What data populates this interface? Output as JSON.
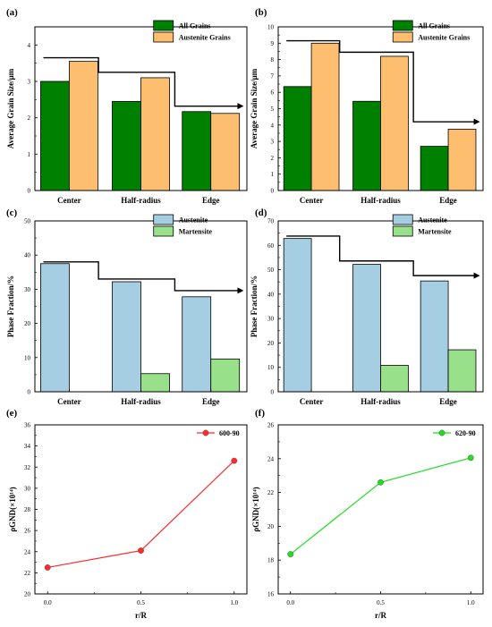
{
  "colors": {
    "all_grains": "#008000",
    "austenite_grains": "#FDBF6F",
    "austenite": "#A6CEE3",
    "martensite": "#99E08A",
    "line_600": "#FF2A2A",
    "line_620": "#22DD22"
  },
  "chart_data": [
    {
      "panel": "(a)",
      "type": "bar",
      "categories": [
        "Center",
        "Half-radius",
        "Edge"
      ],
      "series": [
        {
          "name": "All Grains",
          "values": [
            3.0,
            2.45,
            2.17
          ]
        },
        {
          "name": "Austenite Grains",
          "values": [
            3.55,
            3.1,
            2.12
          ]
        }
      ],
      "xlabel": "",
      "ylabel": "Average Grain Size/μm",
      "ylim": [
        0,
        4.5
      ],
      "yticks": [
        "0",
        "1",
        "2",
        "3",
        "4"
      ],
      "trend_arrow": [
        3.65,
        3.25,
        2.32
      ],
      "legend": "top-right"
    },
    {
      "panel": "(b)",
      "type": "bar",
      "categories": [
        "Center",
        "Half-radius",
        "Edge"
      ],
      "series": [
        {
          "name": "All Grains",
          "values": [
            6.35,
            5.45,
            2.7
          ]
        },
        {
          "name": "Austenite Grains",
          "values": [
            9.0,
            8.2,
            3.75
          ]
        }
      ],
      "xlabel": "",
      "ylabel": "Average Grain Size/μm",
      "ylim": [
        0,
        10
      ],
      "yticks": [
        "0",
        "1",
        "2",
        "3",
        "4",
        "5",
        "6",
        "7",
        "8",
        "9",
        "10"
      ],
      "trend_arrow": [
        9.15,
        8.45,
        4.2
      ],
      "legend": "top-right"
    },
    {
      "panel": "(c)",
      "type": "bar",
      "categories": [
        "Center",
        "Half-radius",
        "Edge"
      ],
      "series": [
        {
          "name": "Austenite",
          "values": [
            37.5,
            32.2,
            27.8
          ]
        },
        {
          "name": "Martensite",
          "values": [
            0,
            5.3,
            9.6
          ]
        }
      ],
      "xlabel": "",
      "ylabel": "Phase Fraction/%",
      "ylim": [
        0,
        50
      ],
      "yticks": [
        "0",
        "10",
        "20",
        "30",
        "40",
        "50"
      ],
      "trend_arrow": [
        38,
        33,
        29.6
      ],
      "legend": "top-right"
    },
    {
      "panel": "(d)",
      "type": "bar",
      "categories": [
        "Center",
        "Half-radius",
        "Edge"
      ],
      "series": [
        {
          "name": "Austenite",
          "values": [
            62.8,
            52.2,
            45.4
          ]
        },
        {
          "name": "Martensite",
          "values": [
            0,
            10.8,
            17.2
          ]
        }
      ],
      "xlabel": "",
      "ylabel": "Phase Fraction/%",
      "ylim": [
        0,
        70
      ],
      "yticks": [
        "0",
        "10",
        "20",
        "30",
        "40",
        "50",
        "60",
        "70"
      ],
      "trend_arrow": [
        63.8,
        53.6,
        47.6
      ],
      "legend": "top-right"
    },
    {
      "panel": "(e)",
      "type": "line",
      "x": [
        0.0,
        0.5,
        1.0
      ],
      "xticks": [
        "0.0",
        "0.5",
        "1.0"
      ],
      "series": [
        {
          "name": "600-90",
          "values": [
            22.5,
            24.1,
            32.6
          ]
        }
      ],
      "xlabel": "r/R",
      "ylabel": "ρGND(×10¹⁴)",
      "ylim": [
        20,
        36
      ],
      "yticks": [
        "20",
        "22",
        "24",
        "26",
        "28",
        "30",
        "32",
        "34",
        "36"
      ],
      "legend": "top-right"
    },
    {
      "panel": "(f)",
      "type": "line",
      "x": [
        0.0,
        0.5,
        1.0
      ],
      "xticks": [
        "0.0",
        "0.5",
        "1.0"
      ],
      "series": [
        {
          "name": "620-90",
          "values": [
            18.35,
            22.6,
            24.05
          ]
        }
      ],
      "xlabel": "r/R",
      "ylabel": "ρGND(×10¹⁴)",
      "ylim": [
        16,
        26
      ],
      "yticks": [
        "16",
        "18",
        "20",
        "22",
        "24",
        "26"
      ],
      "legend": "top-right"
    }
  ]
}
